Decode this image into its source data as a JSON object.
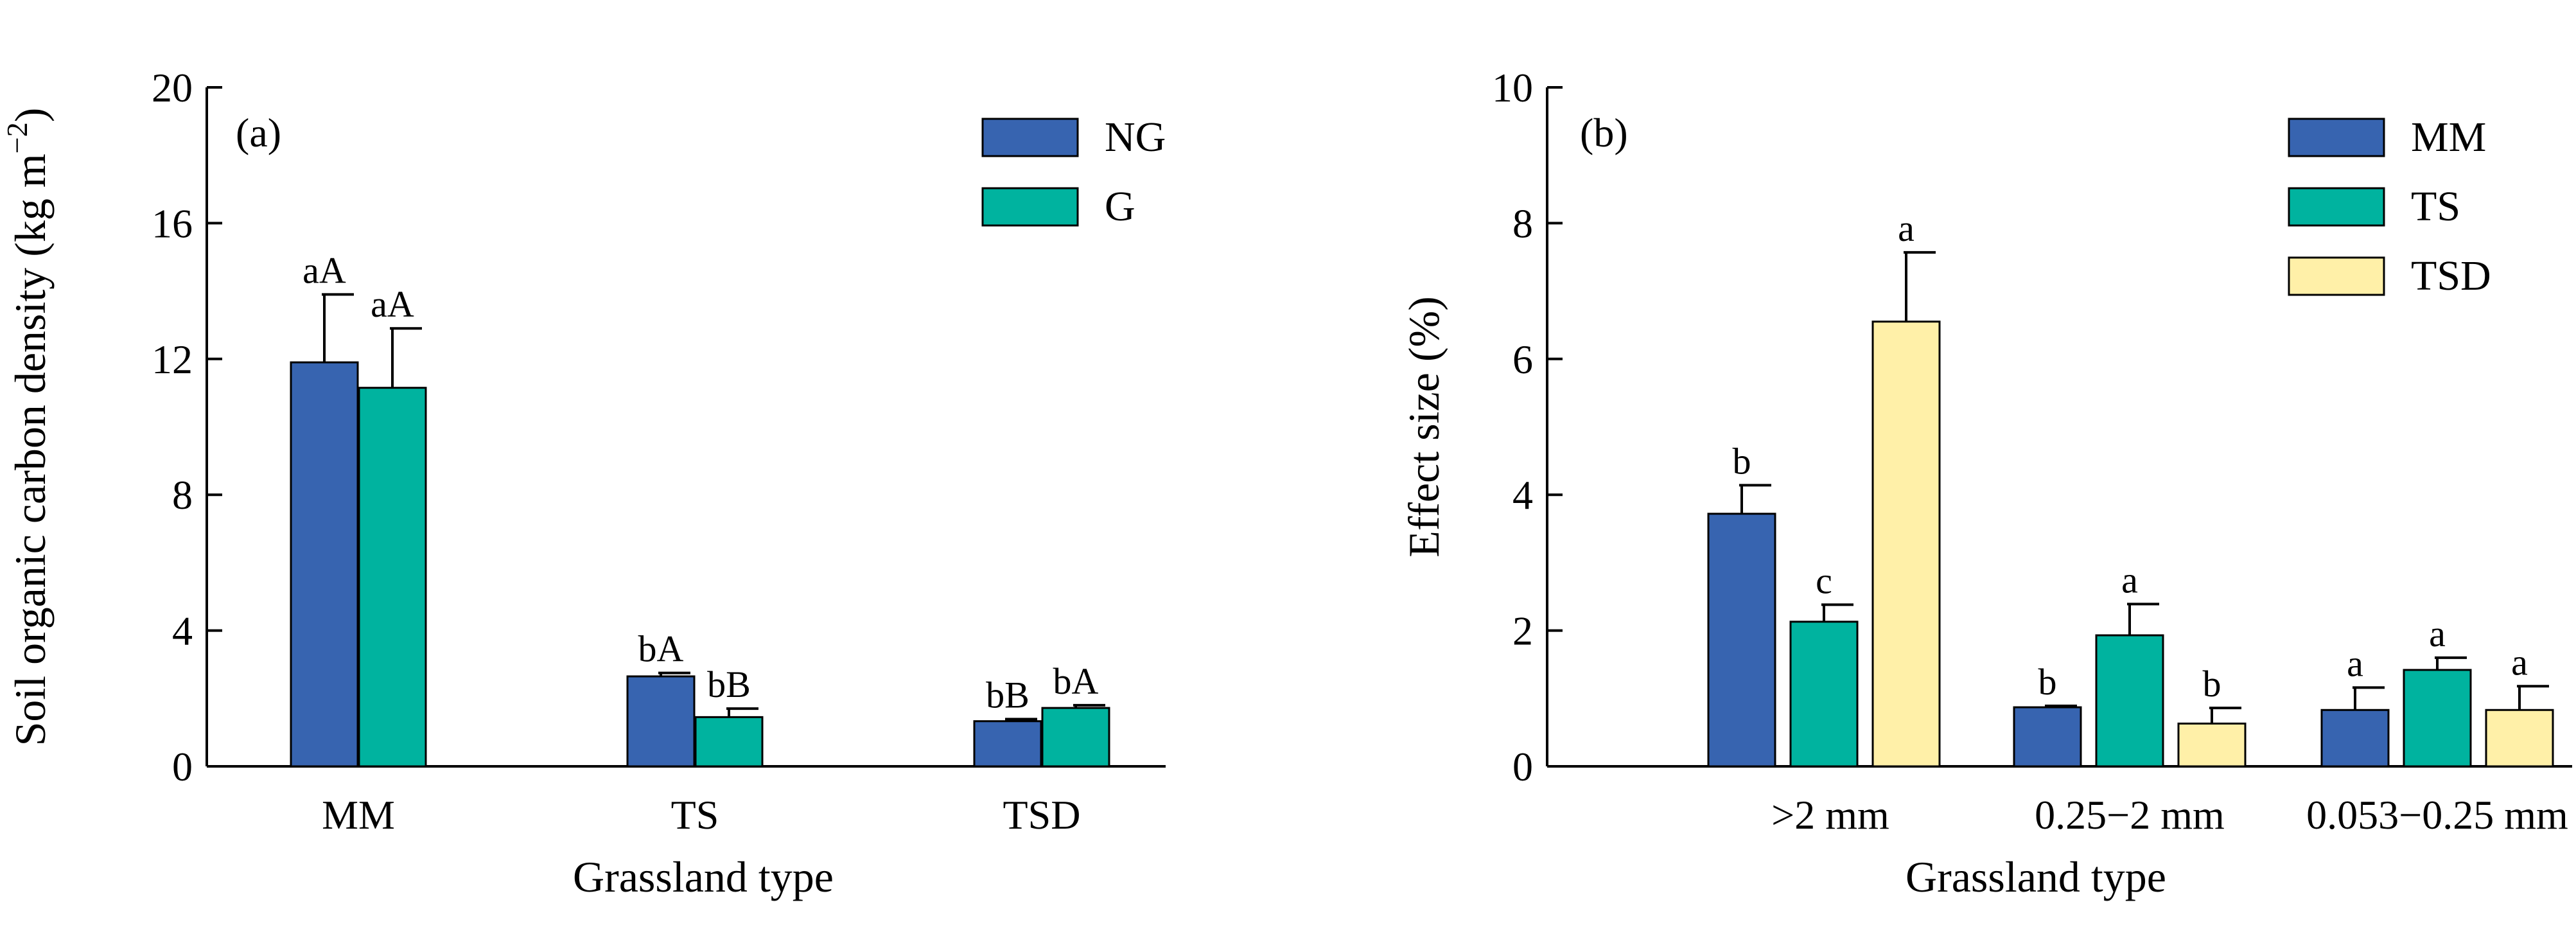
{
  "chart_data": [
    {
      "type": "bar",
      "panel_label": "(a)",
      "xlabel": "Grassland type",
      "ylabel": "Soil organic carbon density (kg m",
      "ylabel_sup": "−2",
      "ylabel_tail": ")",
      "ylim": [
        0,
        20
      ],
      "yticks": [
        "0",
        "4",
        "8",
        "12",
        "16",
        "20"
      ],
      "categories": [
        "MM",
        "TS",
        "TSD"
      ],
      "legend_position": "top-right",
      "series": [
        {
          "name": "NG",
          "color": "#3764B0",
          "values": [
            11.9,
            2.65,
            1.33
          ],
          "errors": [
            2.0,
            0.1,
            0.06
          ],
          "labels": [
            "aA",
            "bA",
            "bB"
          ]
        },
        {
          "name": "G",
          "color": "#00B39F",
          "values": [
            11.15,
            1.45,
            1.72
          ],
          "errors": [
            1.75,
            0.25,
            0.08
          ],
          "labels": [
            "aA",
            "bB",
            "bA"
          ]
        }
      ]
    },
    {
      "type": "bar",
      "panel_label": "(b)",
      "xlabel": "Grassland type",
      "ylabel": "Effect size (%)",
      "ylim": [
        0,
        10
      ],
      "yticks": [
        "0",
        "2",
        "4",
        "6",
        "8",
        "10"
      ],
      "categories": [
        ">2 mm",
        "0.25−2 mm",
        "0.053−0.25 mm"
      ],
      "legend_position": "top-right",
      "series": [
        {
          "name": "MM",
          "color": "#3764B0",
          "values": [
            3.72,
            0.87,
            0.83
          ],
          "errors": [
            0.42,
            0.02,
            0.33
          ],
          "labels": [
            "b",
            "b",
            "a"
          ]
        },
        {
          "name": "TS",
          "color": "#00B39F",
          "values": [
            2.13,
            1.93,
            1.42
          ],
          "errors": [
            0.25,
            0.46,
            0.18
          ],
          "labels": [
            "c",
            "a",
            "a"
          ]
        },
        {
          "name": "TSD",
          "color": "#FFF0A8",
          "values": [
            6.55,
            0.63,
            0.83
          ],
          "errors": [
            1.02,
            0.23,
            0.35
          ],
          "labels": [
            "a",
            "b",
            "a"
          ]
        }
      ]
    }
  ]
}
